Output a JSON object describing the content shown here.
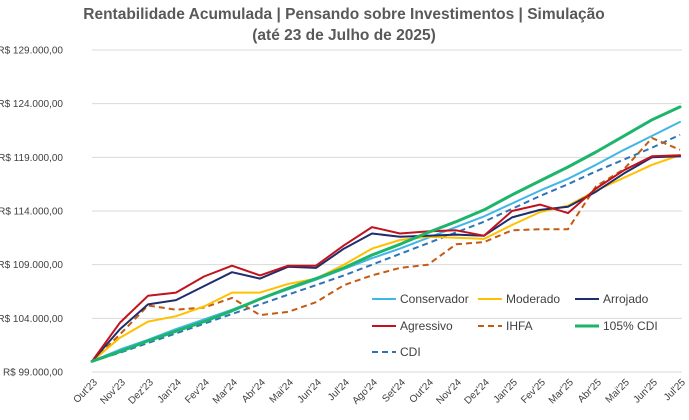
{
  "chart_data": {
    "type": "line",
    "title_line1": "Rentabilidade Acumulada | Pensando sobre Investimentos | Simulação",
    "title_line2": "(até 23 de Julho de 2025)",
    "xlabel": "",
    "ylabel": "",
    "ylim": [
      99000,
      129000
    ],
    "yticks": [
      99000,
      104000,
      109000,
      114000,
      119000,
      124000,
      129000
    ],
    "ytick_labels": [
      "R$ 99.000,00",
      "R$ 104.000,00",
      "R$ 109.000,00",
      "R$ 114.000,00",
      "R$ 119.000,00",
      "R$ 124.000,00",
      "R$ 129.000,00"
    ],
    "categories": [
      "Out'23",
      "Nov'23",
      "Dez'23",
      "Jan'24",
      "Fev'24",
      "Mar'24",
      "Abr'24",
      "Mai'24",
      "Jun'24",
      "Jul'24",
      "Ago'24",
      "Set'24",
      "Out'24",
      "Nov'24",
      "Dez'24",
      "Jan'25",
      "Fev'25",
      "Mar'25",
      "Abr'25",
      "Mai'25",
      "Jun'25",
      "Jul'25"
    ],
    "grid": true,
    "legend_position": "bottom-right-inside",
    "series": [
      {
        "name": "Conservador",
        "color": "#41B6E6",
        "dash": false,
        "width": 2,
        "values": [
          100000,
          101100,
          102000,
          103000,
          103900,
          104800,
          105800,
          106700,
          107600,
          108600,
          109600,
          110500,
          111500,
          112500,
          113500,
          114700,
          115900,
          117000,
          118300,
          119700,
          121000,
          122300
        ]
      },
      {
        "name": "Moderado",
        "color": "#FFC000",
        "dash": false,
        "width": 2,
        "values": [
          100000,
          102200,
          103700,
          104200,
          105100,
          106400,
          106400,
          107200,
          107700,
          109000,
          110500,
          111300,
          111600,
          111500,
          111400,
          112700,
          113900,
          114500,
          115900,
          117100,
          118300,
          119200
        ]
      },
      {
        "name": "Arrojado",
        "color": "#1F2D6D",
        "dash": false,
        "width": 2,
        "values": [
          100000,
          103000,
          105300,
          105700,
          107000,
          108300,
          107700,
          108800,
          108700,
          110500,
          111900,
          111600,
          111700,
          111800,
          111700,
          113400,
          114100,
          114400,
          115800,
          117500,
          119000,
          119100
        ]
      },
      {
        "name": "Agressivo",
        "color": "#C0131D",
        "dash": false,
        "width": 2,
        "values": [
          100000,
          103600,
          106100,
          106400,
          107900,
          108900,
          108000,
          108900,
          108900,
          110800,
          112500,
          111900,
          112100,
          112200,
          111700,
          114000,
          114600,
          113800,
          116100,
          117800,
          119100,
          119200
        ]
      },
      {
        "name": "IHFA",
        "color": "#C55A11",
        "dash": true,
        "width": 2,
        "values": [
          100000,
          102500,
          105200,
          104800,
          105000,
          105900,
          104300,
          104600,
          105500,
          107100,
          108000,
          108700,
          109000,
          110900,
          111100,
          112200,
          112300,
          112300,
          116300,
          117900,
          120800,
          119700
        ]
      },
      {
        "name": "105% CDI",
        "color": "#1DB56B",
        "dash": false,
        "width": 3,
        "values": [
          100000,
          100900,
          101900,
          102800,
          103700,
          104700,
          105800,
          106800,
          107700,
          108700,
          109900,
          110900,
          112000,
          113000,
          114100,
          115500,
          116800,
          118100,
          119500,
          121000,
          122500,
          123700
        ]
      },
      {
        "name": "CDI",
        "color": "#2E75B6",
        "dash": true,
        "width": 2,
        "values": [
          100000,
          100800,
          101700,
          102600,
          103500,
          104400,
          105300,
          106200,
          107100,
          108000,
          109000,
          110000,
          111000,
          112000,
          113000,
          114200,
          115400,
          116500,
          117700,
          118800,
          119900,
          121100
        ]
      }
    ]
  }
}
